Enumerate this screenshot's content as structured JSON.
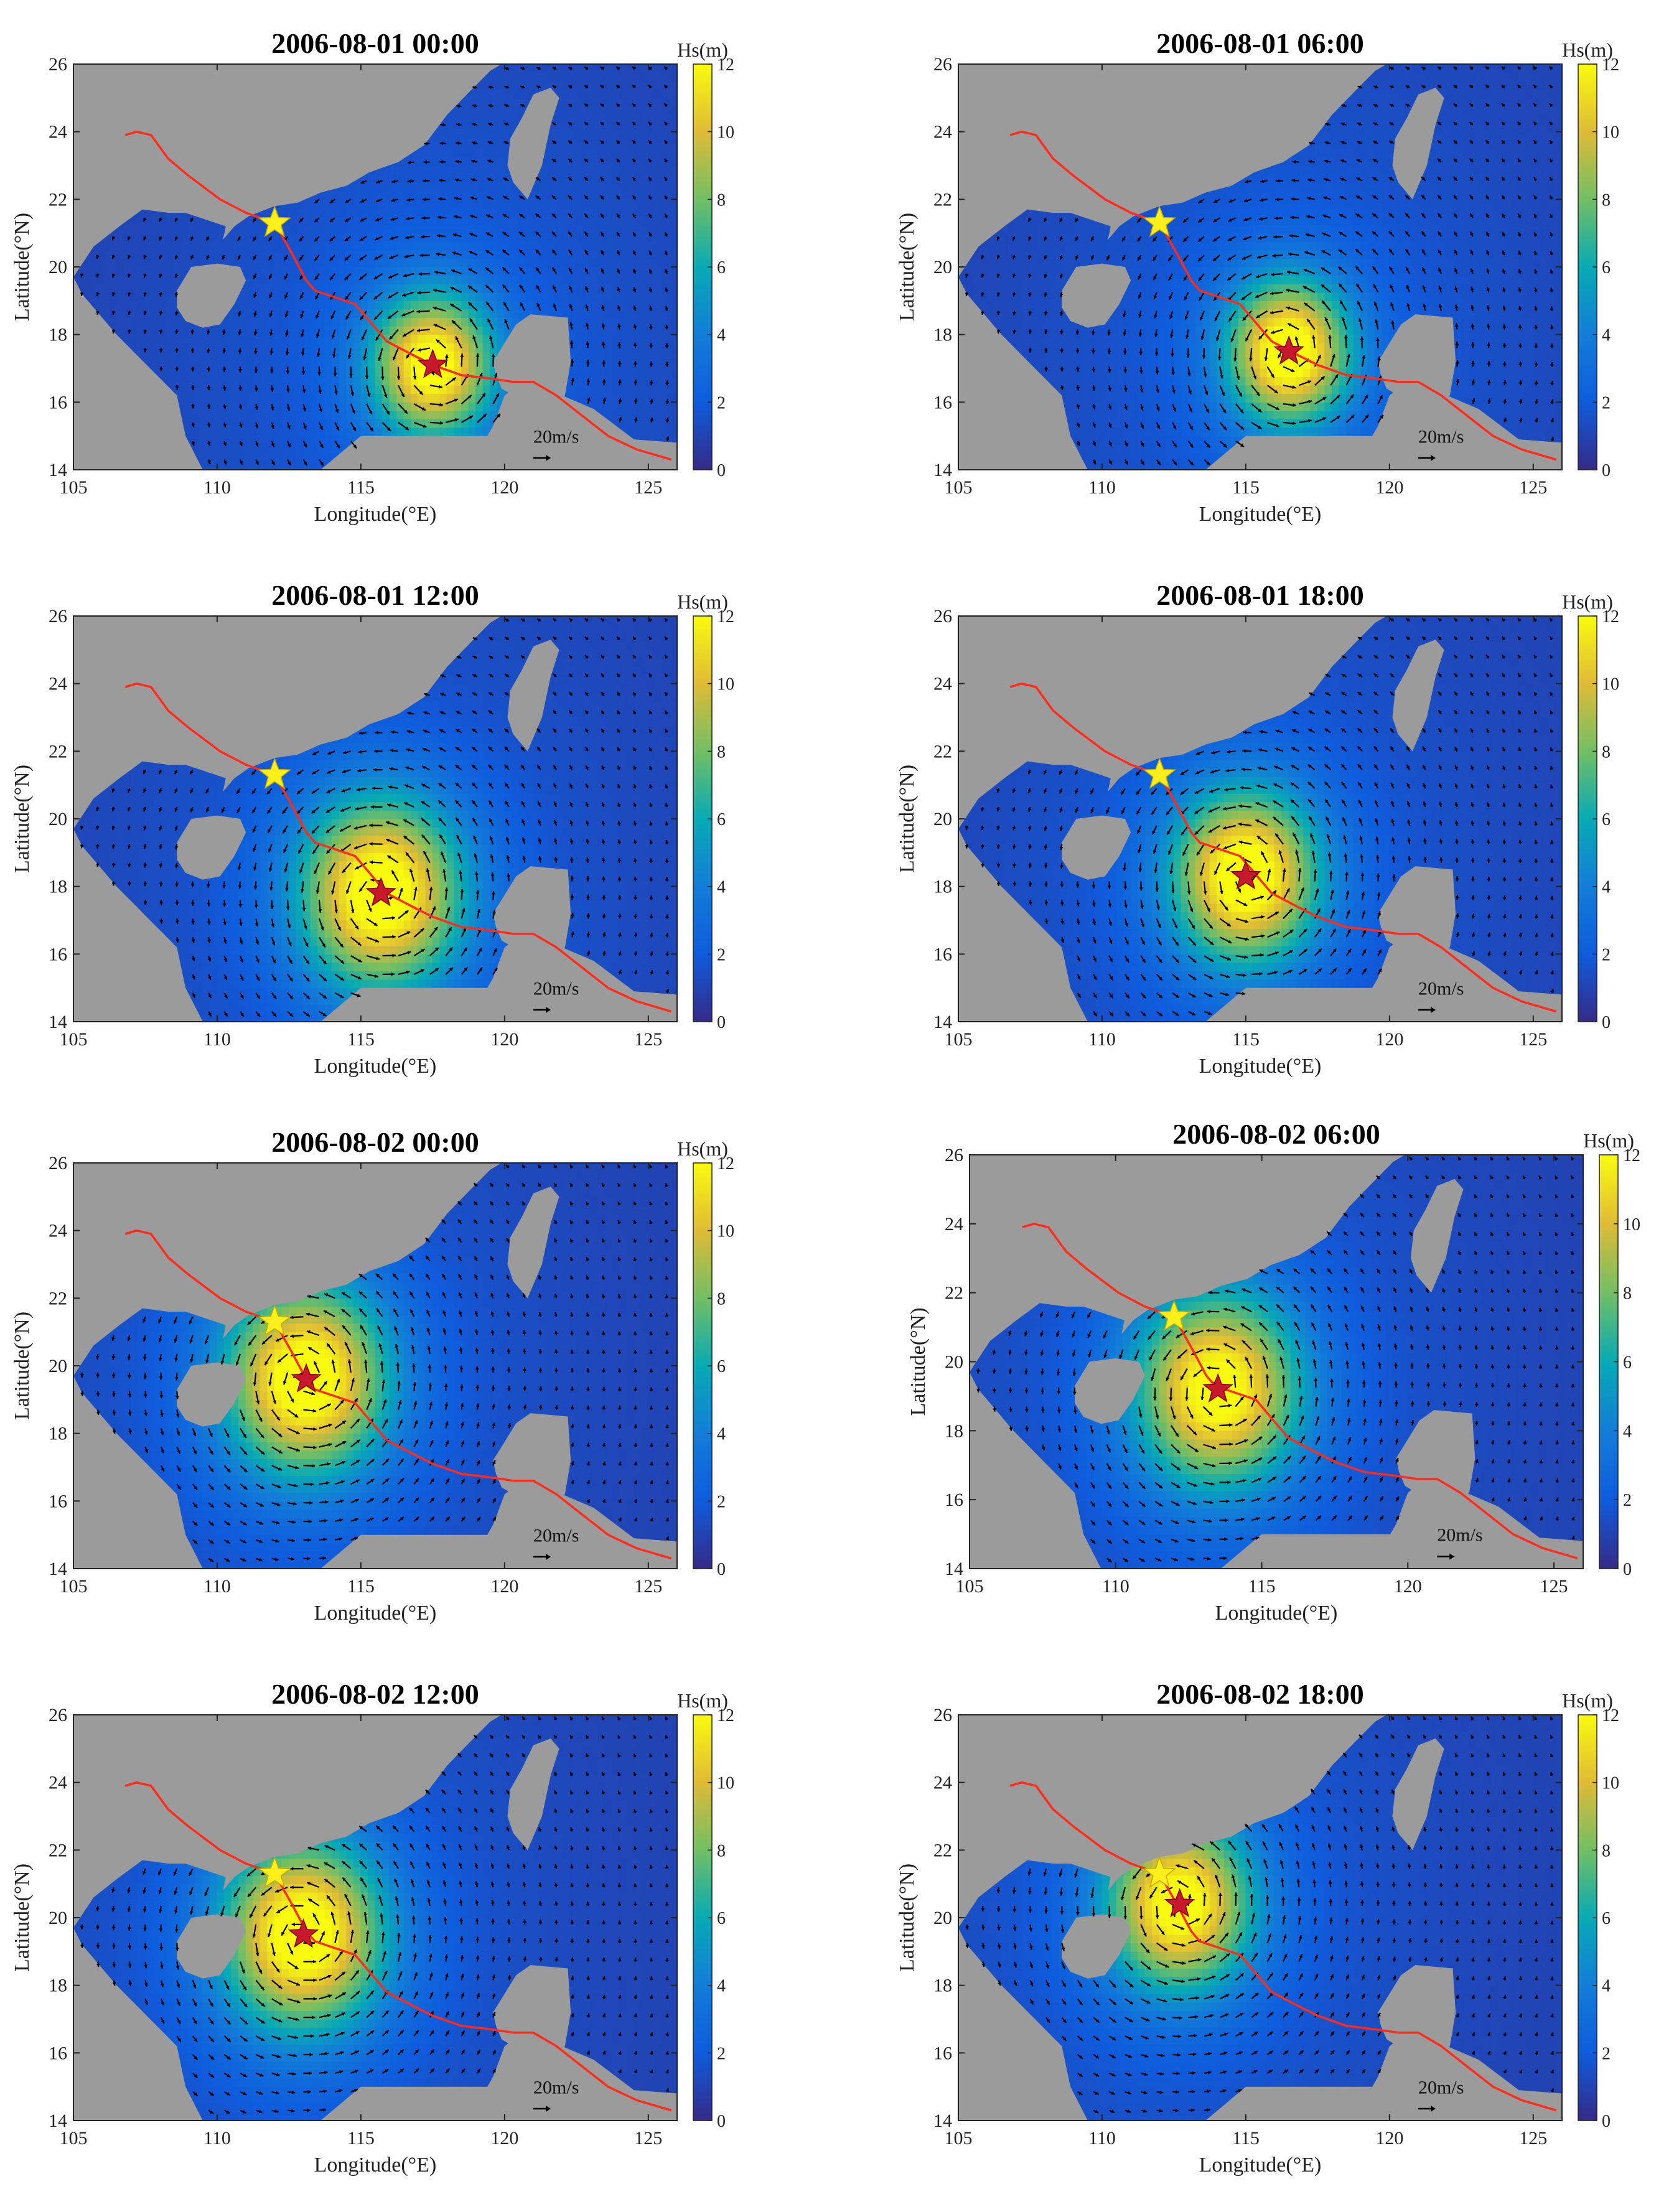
{
  "chart_data": [
    {
      "type": "heatmap",
      "title": "2006-08-01 00:00",
      "xlabel": "Longitude(°E)",
      "ylabel": "Latitude(°N)",
      "xlim": [
        105,
        126
      ],
      "ylim": [
        14,
        26
      ],
      "xticks": [
        105,
        110,
        115,
        120,
        125
      ],
      "yticks": [
        14,
        16,
        18,
        20,
        22,
        24,
        26
      ],
      "colorbar": {
        "label": "Hs(m)",
        "range": [
          0,
          12
        ],
        "ticks": [
          0,
          2,
          4,
          6,
          8,
          10,
          12
        ]
      },
      "typhoon_center": [
        117.5,
        17.1
      ],
      "typhoon_peak_hs": 10.0,
      "typhoon_radius_deg": 1.5,
      "reference_star": [
        112.0,
        21.3
      ],
      "vector_scale_label": "20m/s"
    },
    {
      "type": "heatmap",
      "title": "2006-08-01 06:00",
      "xlabel": "Longitude(°E)",
      "ylabel": "Latitude(°N)",
      "xlim": [
        105,
        126
      ],
      "ylim": [
        14,
        26
      ],
      "xticks": [
        105,
        110,
        115,
        120,
        125
      ],
      "yticks": [
        14,
        16,
        18,
        20,
        22,
        24,
        26
      ],
      "colorbar": {
        "label": "Hs(m)",
        "range": [
          0,
          12
        ],
        "ticks": [
          0,
          2,
          4,
          6,
          8,
          10,
          12
        ]
      },
      "typhoon_center": [
        116.5,
        17.5
      ],
      "typhoon_peak_hs": 10.5,
      "typhoon_radius_deg": 1.5,
      "reference_star": [
        112.0,
        21.3
      ],
      "vector_scale_label": "20m/s"
    },
    {
      "type": "heatmap",
      "title": "2006-08-01 12:00",
      "xlabel": "Longitude(°E)",
      "ylabel": "Latitude(°N)",
      "xlim": [
        105,
        126
      ],
      "ylim": [
        14,
        26
      ],
      "xticks": [
        105,
        110,
        115,
        120,
        125
      ],
      "yticks": [
        14,
        16,
        18,
        20,
        22,
        24,
        26
      ],
      "colorbar": {
        "label": "Hs(m)",
        "range": [
          0,
          12
        ],
        "ticks": [
          0,
          2,
          4,
          6,
          8,
          10,
          12
        ]
      },
      "typhoon_center": [
        115.7,
        17.8
      ],
      "typhoon_peak_hs": 10.5,
      "typhoon_radius_deg": 2.0,
      "reference_star": [
        112.0,
        21.3
      ],
      "vector_scale_label": "20m/s"
    },
    {
      "type": "heatmap",
      "title": "2006-08-01 18:00",
      "xlabel": "Longitude(°E)",
      "ylabel": "Latitude(°N)",
      "xlim": [
        105,
        126
      ],
      "ylim": [
        14,
        26
      ],
      "xticks": [
        105,
        110,
        115,
        120,
        125
      ],
      "yticks": [
        14,
        16,
        18,
        20,
        22,
        24,
        26
      ],
      "colorbar": {
        "label": "Hs(m)",
        "range": [
          0,
          12
        ],
        "ticks": [
          0,
          2,
          4,
          6,
          8,
          10,
          12
        ]
      },
      "typhoon_center": [
        115.0,
        18.3
      ],
      "typhoon_peak_hs": 10.5,
      "typhoon_radius_deg": 1.8,
      "reference_star": [
        112.0,
        21.3
      ],
      "vector_scale_label": "20m/s"
    },
    {
      "type": "heatmap",
      "title": "2006-08-02 00:00",
      "xlabel": "Longitude(°E)",
      "ylabel": "Latitude(°N)",
      "xlim": [
        105,
        126
      ],
      "ylim": [
        14,
        26
      ],
      "xticks": [
        105,
        110,
        115,
        120,
        125
      ],
      "yticks": [
        14,
        16,
        18,
        20,
        22,
        24,
        26
      ],
      "colorbar": {
        "label": "Hs(m)",
        "range": [
          0,
          12
        ],
        "ticks": [
          0,
          2,
          4,
          6,
          8,
          10,
          12
        ]
      },
      "typhoon_center": [
        113.1,
        19.6
      ],
      "typhoon_peak_hs": 10.5,
      "typhoon_radius_deg": 2.0,
      "reference_star": [
        112.0,
        21.3
      ],
      "vector_scale_label": "20m/s"
    },
    {
      "type": "heatmap",
      "title": "2006-08-02 06:00",
      "xlabel": "Longitude(°E)",
      "ylabel": "Latitude(°N)",
      "xlim": [
        105,
        126
      ],
      "ylim": [
        14,
        26
      ],
      "xticks": [
        105,
        110,
        115,
        120,
        125
      ],
      "yticks": [
        14,
        16,
        18,
        20,
        22,
        24,
        26
      ],
      "colorbar": {
        "label": "Hs(m)",
        "range": [
          0,
          12
        ],
        "ticks": [
          0,
          2,
          4,
          6,
          8,
          10,
          12
        ]
      },
      "typhoon_center": [
        113.5,
        19.2
      ],
      "typhoon_peak_hs": 10.0,
      "typhoon_radius_deg": 2.0,
      "reference_star": [
        112.0,
        21.3
      ],
      "vector_scale_label": "20m/s"
    },
    {
      "type": "heatmap",
      "title": "2006-08-02 12:00",
      "xlabel": "Longitude(°E)",
      "ylabel": "Latitude(°N)",
      "xlim": [
        105,
        126
      ],
      "ylim": [
        14,
        26
      ],
      "xticks": [
        105,
        110,
        115,
        120,
        125
      ],
      "yticks": [
        14,
        16,
        18,
        20,
        22,
        24,
        26
      ],
      "colorbar": {
        "label": "Hs(m)",
        "range": [
          0,
          12
        ],
        "ticks": [
          0,
          2,
          4,
          6,
          8,
          10,
          12
        ]
      },
      "typhoon_center": [
        113.0,
        19.5
      ],
      "typhoon_peak_hs": 10.5,
      "typhoon_radius_deg": 2.0,
      "reference_star": [
        112.0,
        21.3
      ],
      "vector_scale_label": "20m/s"
    },
    {
      "type": "heatmap",
      "title": "2006-08-02 18:00",
      "xlabel": "Longitude(°E)",
      "ylabel": "Latitude(°N)",
      "xlim": [
        105,
        126
      ],
      "ylim": [
        14,
        26
      ],
      "xticks": [
        105,
        110,
        115,
        120,
        125
      ],
      "yticks": [
        14,
        16,
        18,
        20,
        22,
        24,
        26
      ],
      "colorbar": {
        "label": "Hs(m)",
        "range": [
          0,
          12
        ],
        "ticks": [
          0,
          2,
          4,
          6,
          8,
          10,
          12
        ]
      },
      "typhoon_center": [
        112.7,
        20.4
      ],
      "typhoon_peak_hs": 10.0,
      "typhoon_radius_deg": 1.8,
      "reference_star": [
        112.0,
        21.3
      ],
      "vector_scale_label": "20m/s"
    }
  ],
  "typhoon_track": [
    [
      106.8,
      23.9
    ],
    [
      107.2,
      24.0
    ],
    [
      107.7,
      23.9
    ],
    [
      108.3,
      23.2
    ],
    [
      109.0,
      22.7
    ],
    [
      110.1,
      22.0
    ],
    [
      111.0,
      21.6
    ],
    [
      112.0,
      21.3
    ],
    [
      112.6,
      20.4
    ],
    [
      113.1,
      19.6
    ],
    [
      113.4,
      19.3
    ],
    [
      114.1,
      19.1
    ],
    [
      114.8,
      18.9
    ],
    [
      115.4,
      18.3
    ],
    [
      115.9,
      17.8
    ],
    [
      116.8,
      17.4
    ],
    [
      117.5,
      17.1
    ],
    [
      118.5,
      16.8
    ],
    [
      119.5,
      16.7
    ],
    [
      120.3,
      16.6
    ],
    [
      121.0,
      16.6
    ],
    [
      121.8,
      16.2
    ],
    [
      122.7,
      15.6
    ],
    [
      123.6,
      15.0
    ],
    [
      124.6,
      14.6
    ],
    [
      125.8,
      14.3
    ]
  ],
  "colors": {
    "land": "#9b9b9b",
    "track": "#ff2a1a",
    "center_star": "#c8182c",
    "reference_star": "#ffef1a",
    "arrow": "#000000"
  }
}
